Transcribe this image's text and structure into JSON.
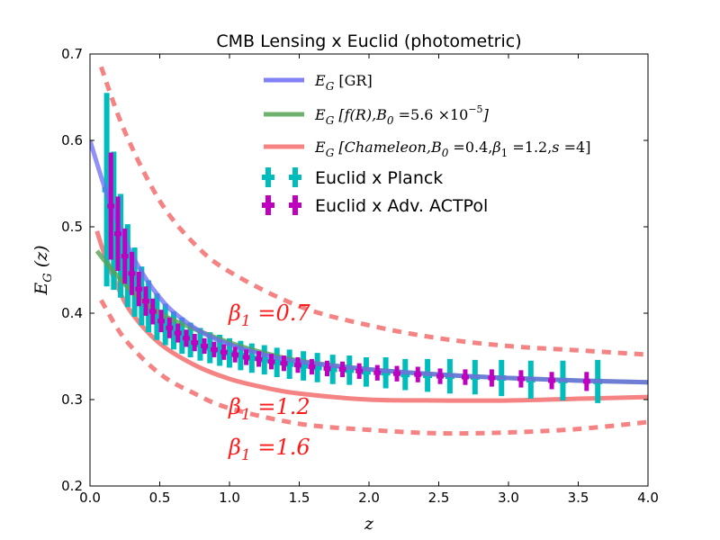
{
  "chart_data": {
    "type": "line",
    "title": "CMB Lensing x Euclid (photometric)",
    "xlabel": "z",
    "ylabel": "E_G (z)",
    "xlim": [
      0.0,
      4.0
    ],
    "ylim": [
      0.2,
      0.7
    ],
    "x_ticks": [
      "0.0",
      "0.5",
      "1.0",
      "1.5",
      "2.0",
      "2.5",
      "3.0",
      "3.5",
      "4.0"
    ],
    "y_ticks": [
      "0.2",
      "0.3",
      "0.4",
      "0.5",
      "0.6",
      "0.7"
    ],
    "grid": false,
    "legend_position": "top-right",
    "series": [
      {
        "name": "E_G [GR]",
        "style": "solid",
        "color": "#6b6bf5",
        "x": [
          0.0,
          0.1,
          0.2,
          0.3,
          0.4,
          0.5,
          0.6,
          0.8,
          1.0,
          1.25,
          1.5,
          2.0,
          2.5,
          3.0,
          3.5,
          4.0
        ],
        "y": [
          0.6,
          0.548,
          0.504,
          0.468,
          0.44,
          0.418,
          0.401,
          0.378,
          0.364,
          0.352,
          0.344,
          0.335,
          0.329,
          0.325,
          0.322,
          0.32
        ]
      },
      {
        "name": "E_G [f(R), B0 = 5.6 × 10^-5]",
        "style": "solid",
        "color": "#56a356",
        "x": [
          0.05,
          0.15,
          0.3,
          0.5,
          0.7,
          1.0,
          1.25,
          1.5,
          2.0,
          2.5,
          3.0,
          3.5,
          4.0
        ],
        "y": [
          0.472,
          0.452,
          0.425,
          0.4,
          0.385,
          0.366,
          0.354,
          0.345,
          0.335,
          0.329,
          0.325,
          0.322,
          0.32
        ]
      },
      {
        "name": "E_G [Chameleon, B0 = 0.4, β1 = 1.2, s = 4]",
        "style": "solid",
        "color": "#f47575",
        "x": [
          0.05,
          0.1,
          0.2,
          0.3,
          0.5,
          0.75,
          1.0,
          1.25,
          1.5,
          2.0,
          2.5,
          3.0,
          3.5,
          4.0
        ],
        "y": [
          0.495,
          0.47,
          0.43,
          0.4,
          0.365,
          0.34,
          0.324,
          0.314,
          0.307,
          0.3,
          0.299,
          0.299,
          0.301,
          0.303
        ]
      },
      {
        "name": "β1 = 0.7",
        "style": "dashed",
        "color": "#f47575",
        "x": [
          0.08,
          0.25,
          0.5,
          0.75,
          1.0,
          1.5,
          2.0,
          2.5,
          3.0,
          3.5,
          4.0
        ],
        "y": [
          0.685,
          0.61,
          0.53,
          0.48,
          0.448,
          0.408,
          0.386,
          0.371,
          0.362,
          0.357,
          0.352
        ]
      },
      {
        "name": "β1 = 1.2",
        "style": "dashed",
        "color": "#f47575",
        "x": [
          0.08,
          0.25,
          0.5,
          0.75,
          1.0,
          1.5,
          2.0,
          2.5,
          3.0,
          3.5,
          4.0
        ],
        "y": [
          0.415,
          0.37,
          0.33,
          0.307,
          0.29,
          0.272,
          0.265,
          0.261,
          0.262,
          0.266,
          0.274
        ]
      }
    ],
    "errorbars": [
      {
        "name": "Euclid x Planck",
        "color": "#00bdbd",
        "x": [
          0.12,
          0.17,
          0.22,
          0.27,
          0.32,
          0.37,
          0.42,
          0.48,
          0.54,
          0.6,
          0.66,
          0.72,
          0.79,
          0.86,
          0.93,
          1.0,
          1.08,
          1.16,
          1.25,
          1.34,
          1.43,
          1.53,
          1.63,
          1.74,
          1.86,
          1.98,
          2.12,
          2.26,
          2.42,
          2.58,
          2.76,
          2.95,
          3.16,
          3.39,
          3.64
        ],
        "y": [
          0.543,
          0.507,
          0.478,
          0.455,
          0.436,
          0.42,
          0.408,
          0.396,
          0.387,
          0.38,
          0.374,
          0.369,
          0.364,
          0.36,
          0.357,
          0.354,
          0.351,
          0.348,
          0.346,
          0.343,
          0.341,
          0.339,
          0.337,
          0.335,
          0.334,
          0.332,
          0.331,
          0.329,
          0.328,
          0.327,
          0.326,
          0.325,
          0.323,
          0.322,
          0.321
        ],
        "err": [
          0.112,
          0.08,
          0.06,
          0.048,
          0.04,
          0.034,
          0.03,
          0.027,
          0.024,
          0.022,
          0.021,
          0.02,
          0.019,
          0.018,
          0.018,
          0.017,
          0.017,
          0.017,
          0.017,
          0.017,
          0.017,
          0.017,
          0.017,
          0.017,
          0.017,
          0.017,
          0.018,
          0.018,
          0.019,
          0.02,
          0.02,
          0.021,
          0.022,
          0.023,
          0.025
        ]
      },
      {
        "name": "Euclid x Adv. ACTPol",
        "color": "#c000c0",
        "x": [
          0.15,
          0.2,
          0.25,
          0.3,
          0.35,
          0.4,
          0.45,
          0.51,
          0.57,
          0.63,
          0.69,
          0.75,
          0.82,
          0.89,
          0.96,
          1.04,
          1.12,
          1.21,
          1.3,
          1.39,
          1.49,
          1.59,
          1.7,
          1.81,
          1.93,
          2.06,
          2.2,
          2.35,
          2.51,
          2.69,
          2.88,
          3.09,
          3.31,
          3.56
        ],
        "y": [
          0.524,
          0.492,
          0.466,
          0.446,
          0.428,
          0.414,
          0.402,
          0.391,
          0.383,
          0.377,
          0.371,
          0.366,
          0.362,
          0.358,
          0.355,
          0.352,
          0.349,
          0.347,
          0.344,
          0.342,
          0.34,
          0.338,
          0.336,
          0.335,
          0.333,
          0.331,
          0.33,
          0.329,
          0.327,
          0.326,
          0.325,
          0.324,
          0.322,
          0.321
        ],
        "err": [
          0.062,
          0.043,
          0.032,
          0.025,
          0.02,
          0.017,
          0.015,
          0.013,
          0.012,
          0.011,
          0.01,
          0.01,
          0.009,
          0.009,
          0.009,
          0.009,
          0.009,
          0.009,
          0.009,
          0.009,
          0.009,
          0.009,
          0.009,
          0.009,
          0.009,
          0.009,
          0.009,
          0.009,
          0.009,
          0.009,
          0.01,
          0.01,
          0.01,
          0.011
        ]
      }
    ],
    "annotations": [
      {
        "text": "β1 = 0.7",
        "x": 1.0,
        "y": 0.395
      },
      {
        "text": "β1 = 1.2",
        "x": 1.0,
        "y": 0.287
      },
      {
        "text": "β1 = 1.6",
        "x": 1.0,
        "y": 0.233
      }
    ],
    "legend": [
      {
        "label": "E_G [GR]",
        "kind": "line",
        "color": "#6b6bf5"
      },
      {
        "label": "E_G [f(R), B0 = 5.6 × 10^-5]",
        "kind": "line",
        "color": "#56a356"
      },
      {
        "label": "E_G [Chameleon, B0 = 0.4, β1 = 1.2, s = 4]",
        "kind": "line",
        "color": "#f47575"
      },
      {
        "label": "Euclid x Planck",
        "kind": "errorbar",
        "color": "#00bdbd"
      },
      {
        "label": "Euclid x Adv. ACTPol",
        "kind": "errorbar",
        "color": "#c000c0"
      }
    ]
  }
}
